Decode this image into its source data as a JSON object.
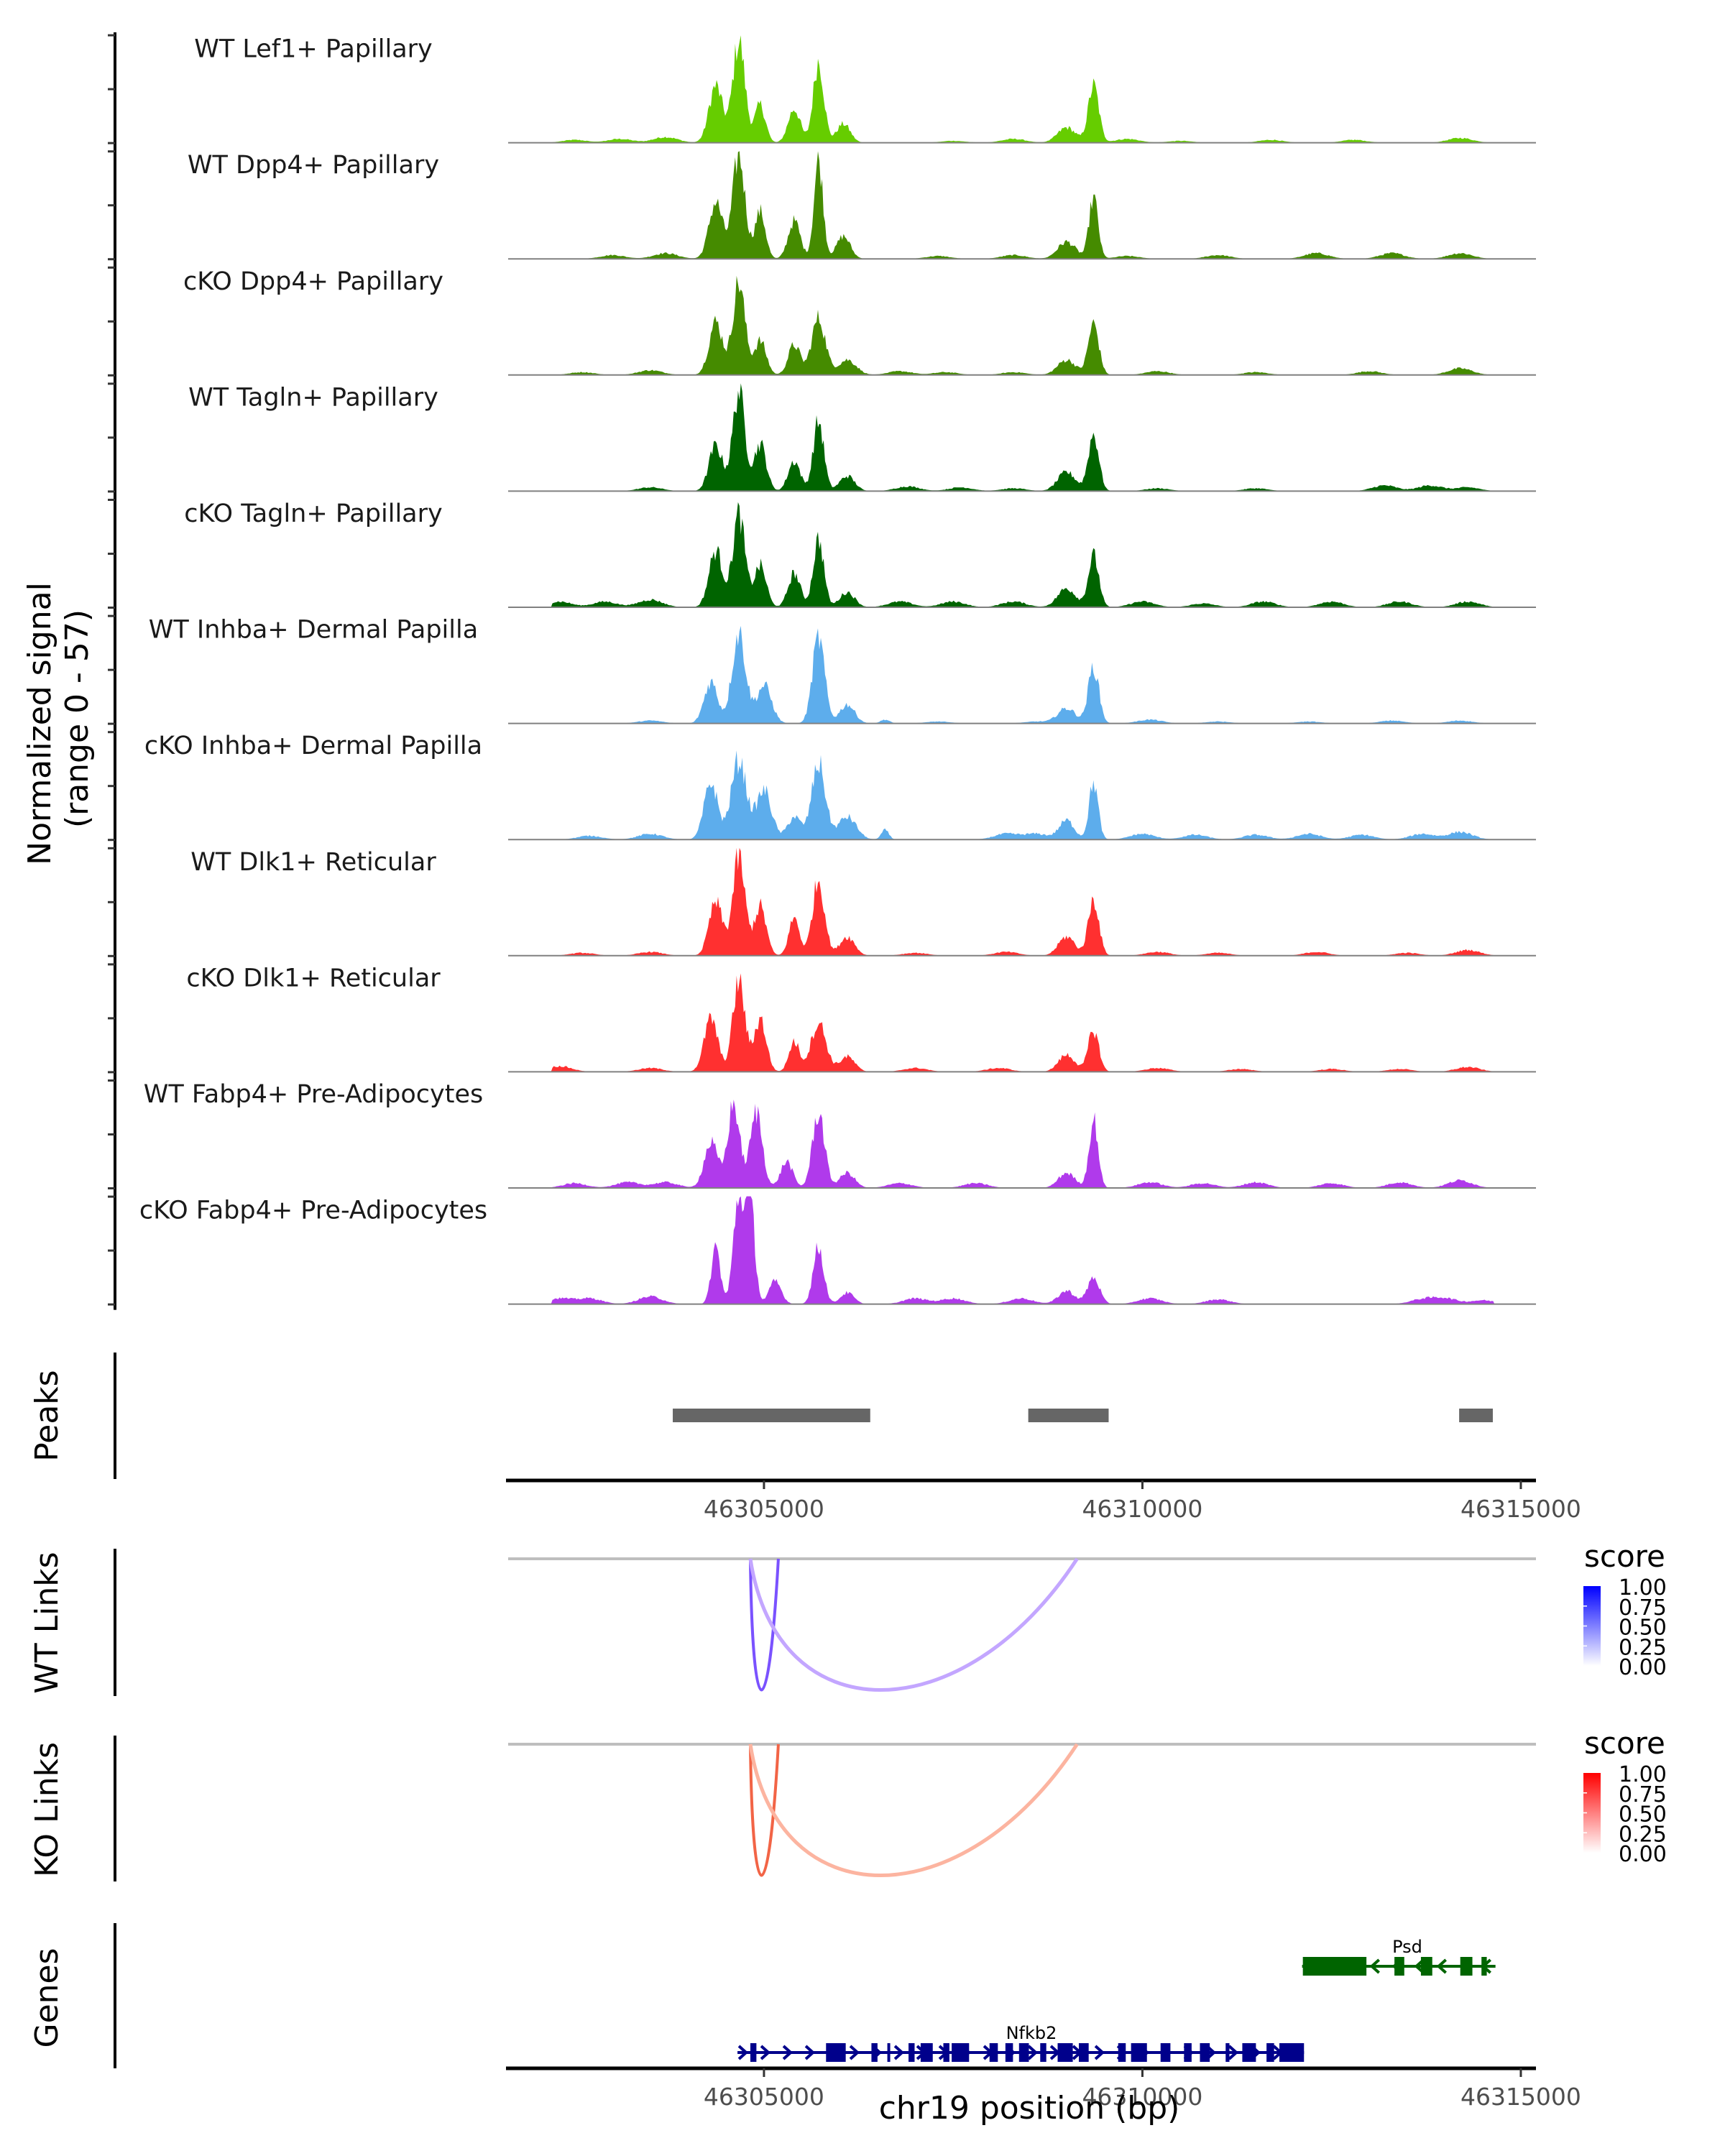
{
  "chart_data": {
    "type": "area",
    "title": "",
    "ylabel": "Normalized signal\n(range 0 - 57)",
    "ylabel_lines": [
      "Normalized signal",
      "(range 0 - 57)"
    ],
    "ylim": [
      0,
      57
    ],
    "xlabel": "chr19 position (bp)",
    "xlim": [
      46301620,
      46315200
    ],
    "x_ticks": [
      46305000,
      46310000,
      46315000
    ],
    "x_tick_labels": [
      "46305000",
      "46310000",
      "46315000"
    ],
    "coverage_tracks": [
      {
        "name": "WT Lef1+ Papillary",
        "color": "#66CD00",
        "peaks": [
          [
            46304364,
            30,
            90
          ],
          [
            46304668,
            54,
            80
          ],
          [
            46304950,
            20,
            70
          ],
          [
            46305400,
            18,
            80
          ],
          [
            46305721,
            43,
            70
          ],
          [
            46306050,
            10,
            90
          ],
          [
            46309000,
            8,
            120
          ],
          [
            46309355,
            30,
            70
          ]
        ],
        "noise": [
          [
            46302500,
            1.5
          ],
          [
            46303100,
            2
          ],
          [
            46303700,
            3
          ],
          [
            46307500,
            1
          ],
          [
            46308300,
            2
          ],
          [
            46309800,
            2
          ],
          [
            46310500,
            1
          ],
          [
            46311700,
            1.5
          ],
          [
            46312800,
            1.5
          ],
          [
            46314200,
            2.5
          ]
        ]
      },
      {
        "name": "WT Dpp4+ Papillary",
        "color": "#458B00",
        "peaks": [
          [
            46304364,
            30,
            90
          ],
          [
            46304668,
            55,
            80
          ],
          [
            46304950,
            25,
            70
          ],
          [
            46305400,
            20,
            80
          ],
          [
            46305721,
            52,
            60
          ],
          [
            46306050,
            12,
            90
          ],
          [
            46309000,
            9,
            120
          ],
          [
            46309355,
            32,
            60
          ]
        ],
        "noise": [
          [
            46303000,
            2
          ],
          [
            46303700,
            3
          ],
          [
            46307300,
            1.5
          ],
          [
            46308300,
            2
          ],
          [
            46309800,
            1.5
          ],
          [
            46311000,
            2
          ],
          [
            46312300,
            3
          ],
          [
            46313300,
            3
          ],
          [
            46314200,
            3
          ]
        ]
      },
      {
        "name": "cKO Dpp4+ Papillary",
        "color": "#458B00",
        "peaks": [
          [
            46304364,
            28,
            90
          ],
          [
            46304668,
            49,
            80
          ],
          [
            46304950,
            18,
            80
          ],
          [
            46305400,
            16,
            80
          ],
          [
            46305721,
            30,
            90
          ],
          [
            46306100,
            8,
            120
          ],
          [
            46309000,
            8,
            120
          ],
          [
            46309355,
            27,
            70
          ]
        ],
        "noise": [
          [
            46302600,
            1.5
          ],
          [
            46303500,
            2.5
          ],
          [
            46306800,
            2
          ],
          [
            46307400,
            1.5
          ],
          [
            46308300,
            1.5
          ],
          [
            46310200,
            2
          ],
          [
            46311500,
            1.5
          ],
          [
            46313000,
            2
          ],
          [
            46314200,
            3.5
          ]
        ]
      },
      {
        "name": "WT Tagln+ Papillary",
        "color": "#006400",
        "peaks": [
          [
            46304364,
            24,
            90
          ],
          [
            46304668,
            53,
            80
          ],
          [
            46304950,
            25,
            80
          ],
          [
            46305400,
            16,
            80
          ],
          [
            46305721,
            37,
            70
          ],
          [
            46306100,
            8,
            100
          ],
          [
            46309000,
            10,
            120
          ],
          [
            46309355,
            30,
            70
          ]
        ],
        "noise": [
          [
            46303500,
            2
          ],
          [
            46306900,
            2.5
          ],
          [
            46307600,
            2
          ],
          [
            46308300,
            1.5
          ],
          [
            46310200,
            1.5
          ],
          [
            46311500,
            1.5
          ],
          [
            46313200,
            3
          ],
          [
            46313800,
            3
          ],
          [
            46314300,
            2
          ]
        ]
      },
      {
        "name": "cKO Tagln+ Papillary",
        "color": "#006400",
        "peaks": [
          [
            46304364,
            30,
            90
          ],
          [
            46304668,
            49,
            80
          ],
          [
            46304950,
            22,
            80
          ],
          [
            46305400,
            18,
            80
          ],
          [
            46305721,
            36,
            70
          ],
          [
            46306100,
            8,
            100
          ],
          [
            46309000,
            10,
            120
          ],
          [
            46309355,
            27,
            70
          ]
        ],
        "noise": [
          [
            46302300,
            3
          ],
          [
            46302900,
            3
          ],
          [
            46303500,
            4
          ],
          [
            46306800,
            3
          ],
          [
            46307500,
            3
          ],
          [
            46308300,
            3
          ],
          [
            46310000,
            3
          ],
          [
            46310800,
            2
          ],
          [
            46311600,
            3
          ],
          [
            46312500,
            3
          ],
          [
            46313400,
            3
          ],
          [
            46314300,
            3
          ]
        ]
      },
      {
        "name": "WT Inhba+ Dermal Papilla",
        "color": "#5DADEC",
        "peaks": [
          [
            46304300,
            22,
            90
          ],
          [
            46304668,
            48,
            90
          ],
          [
            46305000,
            20,
            100
          ],
          [
            46305721,
            45,
            80
          ],
          [
            46306100,
            10,
            100
          ],
          [
            46306600,
            2,
            60
          ],
          [
            46309000,
            8,
            120
          ],
          [
            46309355,
            30,
            70
          ]
        ],
        "noise": [
          [
            46303500,
            1.5
          ],
          [
            46307300,
            1
          ],
          [
            46308600,
            1
          ],
          [
            46310100,
            2
          ],
          [
            46311000,
            1
          ],
          [
            46312200,
            1
          ],
          [
            46313300,
            1.5
          ],
          [
            46314200,
            1.5
          ]
        ]
      },
      {
        "name": "cKO Inhba+ Dermal Papilla",
        "color": "#5DADEC",
        "peaks": [
          [
            46304300,
            30,
            90
          ],
          [
            46304668,
            42,
            100
          ],
          [
            46305000,
            26,
            100
          ],
          [
            46305400,
            12,
            90
          ],
          [
            46305721,
            40,
            90
          ],
          [
            46306100,
            12,
            120
          ],
          [
            46306600,
            5,
            50
          ],
          [
            46309000,
            10,
            100
          ],
          [
            46309355,
            30,
            60
          ]
        ],
        "noise": [
          [
            46302700,
            2
          ],
          [
            46303500,
            3
          ],
          [
            46308200,
            3
          ],
          [
            46308600,
            3
          ],
          [
            46310000,
            3
          ],
          [
            46310700,
            2.5
          ],
          [
            46311500,
            2.5
          ],
          [
            46312200,
            3
          ],
          [
            46312900,
            2.5
          ],
          [
            46313700,
            3
          ],
          [
            46314200,
            4
          ]
        ]
      },
      {
        "name": "WT Dlk1+ Reticular",
        "color": "#FF3030",
        "peaks": [
          [
            46304364,
            28,
            90
          ],
          [
            46304668,
            52,
            80
          ],
          [
            46304950,
            26,
            80
          ],
          [
            46305400,
            20,
            70
          ],
          [
            46305721,
            40,
            80
          ],
          [
            46306100,
            10,
            100
          ],
          [
            46309000,
            10,
            110
          ],
          [
            46309355,
            30,
            70
          ]
        ],
        "noise": [
          [
            46302600,
            1.5
          ],
          [
            46303500,
            2
          ],
          [
            46307000,
            1.5
          ],
          [
            46308200,
            2
          ],
          [
            46310200,
            2
          ],
          [
            46311000,
            1.5
          ],
          [
            46312300,
            2
          ],
          [
            46313500,
            1.5
          ],
          [
            46314300,
            3
          ]
        ]
      },
      {
        "name": "cKO Dlk1+ Reticular",
        "color": "#FF3030",
        "peaks": [
          [
            46304300,
            28,
            90
          ],
          [
            46304668,
            48,
            80
          ],
          [
            46304950,
            28,
            80
          ],
          [
            46305400,
            16,
            70
          ],
          [
            46305721,
            26,
            100
          ],
          [
            46306100,
            8,
            100
          ],
          [
            46309000,
            9,
            110
          ],
          [
            46309355,
            22,
            70
          ]
        ],
        "noise": [
          [
            46302300,
            3
          ],
          [
            46303500,
            2
          ],
          [
            46307000,
            2
          ],
          [
            46308100,
            2
          ],
          [
            46310200,
            2
          ],
          [
            46311300,
            1.5
          ],
          [
            46312500,
            1.5
          ],
          [
            46313400,
            1.5
          ],
          [
            46314300,
            2.5
          ]
        ]
      },
      {
        "name": "WT Fabp4+ Pre-Adipocytes",
        "color": "#B03AEB",
        "peaks": [
          [
            46304300,
            24,
            90
          ],
          [
            46304600,
            44,
            80
          ],
          [
            46304900,
            40,
            80
          ],
          [
            46305300,
            14,
            80
          ],
          [
            46305721,
            40,
            80
          ],
          [
            46306100,
            8,
            100
          ],
          [
            46309000,
            8,
            110
          ],
          [
            46309355,
            36,
            60
          ]
        ],
        "noise": [
          [
            46302500,
            2.5
          ],
          [
            46303200,
            3
          ],
          [
            46303700,
            3
          ],
          [
            46306800,
            2.5
          ],
          [
            46307800,
            2.5
          ],
          [
            46310100,
            3
          ],
          [
            46310800,
            2.5
          ],
          [
            46311500,
            3
          ],
          [
            46312500,
            2.5
          ],
          [
            46313400,
            3
          ],
          [
            46314200,
            4
          ]
        ]
      },
      {
        "name": "cKO Fabp4+ Pre-Adipocytes",
        "color": "#B03AEB",
        "peaks": [
          [
            46304364,
            30,
            60
          ],
          [
            46304668,
            57,
            70
          ],
          [
            46304820,
            52,
            60
          ],
          [
            46305150,
            12,
            80
          ],
          [
            46305721,
            30,
            70
          ],
          [
            46306100,
            6,
            90
          ],
          [
            46309000,
            7,
            110
          ],
          [
            46309355,
            14,
            80
          ]
        ],
        "noise": [
          [
            46302300,
            3
          ],
          [
            46302700,
            3
          ],
          [
            46303500,
            4
          ],
          [
            46307000,
            3
          ],
          [
            46307500,
            3
          ],
          [
            46308400,
            3
          ],
          [
            46310100,
            3
          ],
          [
            46311000,
            2.5
          ],
          [
            46313700,
            2.5
          ],
          [
            46314000,
            3
          ],
          [
            46314500,
            2
          ]
        ]
      }
    ],
    "peaks_track": {
      "label": "Peaks",
      "color": "#666666",
      "regions": [
        [
          46303795,
          46306404
        ],
        [
          46308492,
          46309554
        ],
        [
          46314185,
          46314630
        ]
      ]
    },
    "links_tracks": [
      {
        "label": "WT Links",
        "legend_title": "score",
        "low_color": "#FFFFFF",
        "high_color": "#0000FF",
        "legend_ticks": [
          "1.00",
          "0.75",
          "0.50",
          "0.25",
          "0.00"
        ],
        "links": [
          {
            "start": 46304820,
            "end": 46305190,
            "score": 0.75,
            "color": "#7A52FF"
          },
          {
            "start": 46304820,
            "end": 46309137,
            "score": 0.35,
            "color": "#C3A6FF"
          }
        ]
      },
      {
        "label": "KO Links",
        "legend_title": "score",
        "low_color": "#FFFFFF",
        "high_color": "#FF0000",
        "legend_ticks": [
          "1.00",
          "0.75",
          "0.50",
          "0.25",
          "0.00"
        ],
        "links": [
          {
            "start": 46304820,
            "end": 46305190,
            "score": 0.75,
            "color": "#F26446"
          },
          {
            "start": 46304820,
            "end": 46309137,
            "score": 0.35,
            "color": "#FCB4A0"
          }
        ]
      }
    ],
    "genes_track": {
      "label": "Genes",
      "genes": [
        {
          "name": "Psd",
          "strand": "-",
          "color": "#006400",
          "start": 46312110,
          "end": 46314665,
          "exons": [
            [
              46312120,
              46312960
            ],
            [
              46313330,
              46313460
            ],
            [
              46313680,
              46313830
            ],
            [
              46314200,
              46314360
            ],
            [
              46314480,
              46314550
            ]
          ]
        },
        {
          "name": "Nfkb2",
          "strand": "+",
          "color": "#00008B",
          "start": 46304650,
          "end": 46312135,
          "exons": [
            [
              46304820,
              46304900
            ],
            [
              46305820,
              46306080
            ],
            [
              46306420,
              46306500
            ],
            [
              46306630,
              46306660
            ],
            [
              46306910,
              46306990
            ],
            [
              46307070,
              46307230
            ],
            [
              46307370,
              46307450
            ],
            [
              46307480,
              46307710
            ],
            [
              46307980,
              46308090
            ],
            [
              46308190,
              46308290
            ],
            [
              46308370,
              46308500
            ],
            [
              46308650,
              46308730
            ],
            [
              46308880,
              46309080
            ],
            [
              46309160,
              46309290
            ],
            [
              46309680,
              46309780
            ],
            [
              46309850,
              46310060
            ],
            [
              46310240,
              46310370
            ],
            [
              46310550,
              46310650
            ],
            [
              46310760,
              46310890
            ],
            [
              46311100,
              46311150
            ],
            [
              46311320,
              46311500
            ],
            [
              46311640,
              46311740
            ],
            [
              46311810,
              46312135
            ]
          ]
        }
      ]
    }
  }
}
